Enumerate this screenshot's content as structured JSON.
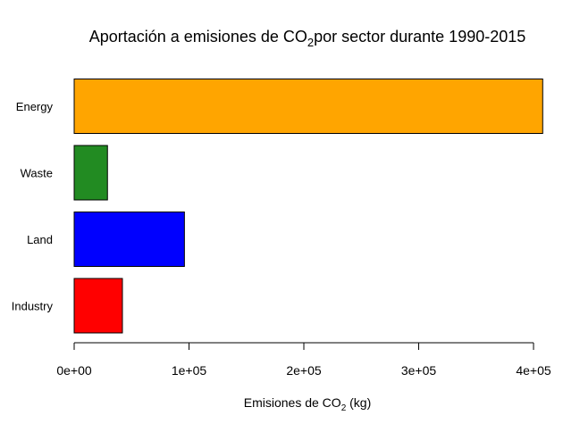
{
  "chart_data": {
    "type": "bar",
    "orientation": "horizontal",
    "title_parts": [
      "Aportación a emisiones de  CO",
      "2",
      "por sector durante 1990-2015"
    ],
    "xlabel_parts": [
      "Emisiones de  CO",
      "2",
      " (kg)"
    ],
    "categories": [
      "Industry",
      "Land",
      "Waste",
      "Energy"
    ],
    "values": [
      42000,
      96000,
      29000,
      408000
    ],
    "colors": [
      "#ff0000",
      "#0000ff",
      "#228b22",
      "#ffa500"
    ],
    "xlim": [
      0,
      400000
    ],
    "xticks": [
      0,
      100000,
      200000,
      300000,
      400000
    ],
    "xtick_labels": [
      "0e+00",
      "1e+05",
      "2e+05",
      "3e+05",
      "4e+05"
    ],
    "grid": false,
    "legend": "none"
  }
}
